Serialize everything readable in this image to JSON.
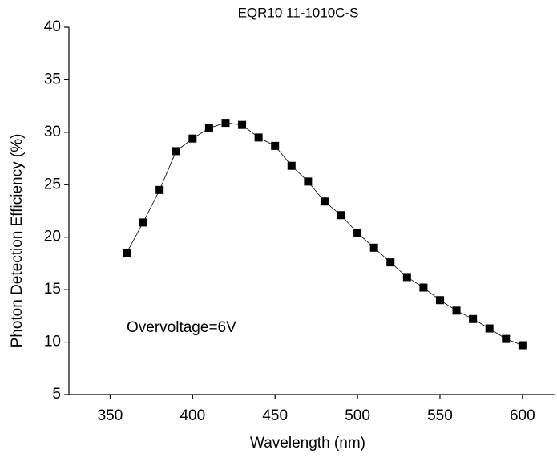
{
  "chart_data": {
    "type": "line",
    "title": "EQR10 11-1010C-S",
    "xlabel": "Wavelength (nm)",
    "ylabel": "Photon Detection Efficiency (%)",
    "annotation": "Overvoltage=6V",
    "x": [
      360,
      370,
      380,
      390,
      400,
      410,
      420,
      430,
      440,
      450,
      460,
      470,
      480,
      490,
      500,
      510,
      520,
      530,
      540,
      550,
      560,
      570,
      580,
      590,
      600
    ],
    "series": [
      {
        "name": "PDE",
        "color": "#000000",
        "values": [
          18.5,
          21.4,
          24.5,
          28.2,
          29.4,
          30.4,
          30.9,
          30.7,
          29.5,
          28.7,
          26.8,
          25.3,
          23.4,
          22.1,
          20.4,
          19.0,
          17.6,
          16.2,
          15.2,
          14.0,
          13.0,
          12.2,
          11.3,
          10.3,
          9.7
        ]
      }
    ],
    "xlim": [
      325,
      620
    ],
    "xticks": [
      350,
      400,
      450,
      500,
      550,
      600
    ],
    "ylim": [
      5,
      40
    ],
    "yticks": [
      5,
      10,
      15,
      20,
      25,
      30,
      35,
      40
    ]
  }
}
